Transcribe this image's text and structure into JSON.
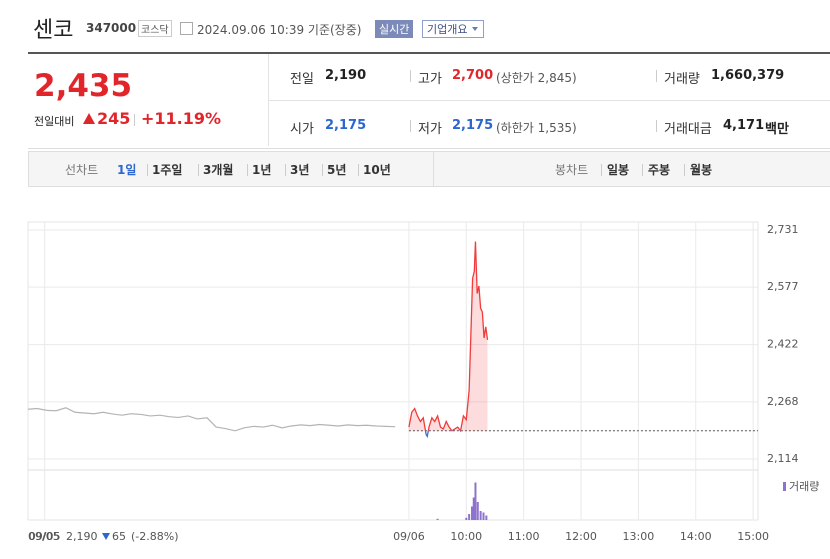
{
  "header": {
    "name": "센코",
    "code": "347000",
    "market": "코스닥",
    "datetime": "2024.09.06 10:39 기준(장중)",
    "realtime_button": "실시간",
    "company_button": "기업개요"
  },
  "quote": {
    "price": "2,435",
    "change_label": "전일대비",
    "change": "245",
    "rate": "+11.19%",
    "prev_close": {
      "label": "전일",
      "value": "2,190"
    },
    "open": {
      "label": "시가",
      "value": "2,175"
    },
    "high": {
      "label": "고가",
      "value": "2,700",
      "limit": "(상한가 2,845)"
    },
    "low": {
      "label": "저가",
      "value": "2,175",
      "limit": "(하한가 1,535)"
    },
    "volume": {
      "label": "거래량",
      "value": "1,660,379"
    },
    "amount": {
      "label": "거래대금",
      "value": "4,171",
      "unit": "백만"
    }
  },
  "tabs": {
    "line_label": "선차트",
    "line_periods": [
      "1일",
      "1주일",
      "3개월",
      "1년",
      "3년",
      "5년",
      "10년"
    ],
    "candle_label": "봉차트",
    "candle_periods": [
      "일봉",
      "주봉",
      "월봉"
    ]
  },
  "chart_data": {
    "type": "line",
    "xlim": [
      26.36,
      39.12
    ],
    "xticks": [
      {
        "value": 26.65,
        "label": "09/05"
      },
      {
        "value": 33,
        "label": "09/06"
      },
      {
        "value": 34,
        "label": "10:00"
      },
      {
        "value": 35,
        "label": "11:00"
      },
      {
        "value": 36,
        "label": "12:00"
      },
      {
        "value": 37,
        "label": "13:00"
      },
      {
        "value": 38,
        "label": "14:00"
      },
      {
        "value": 39,
        "label": "15:00"
      }
    ],
    "ylim": [
      2114,
      2731
    ],
    "yticks": [
      {
        "value": 2114,
        "label": "2,114"
      },
      {
        "value": 2268,
        "label": "2,268"
      },
      {
        "value": 2422,
        "label": "2,422"
      },
      {
        "value": 2577,
        "label": "2,577"
      },
      {
        "value": 2731,
        "label": "2,731"
      }
    ],
    "grid": true,
    "reference": 2190,
    "series": [
      {
        "color": "#b4b4b4",
        "x": [
          26.36,
          26.52,
          26.69,
          26.85,
          27.02,
          27.18,
          27.34,
          27.51,
          27.67,
          27.84,
          28.0,
          28.16,
          28.33,
          28.49,
          28.66,
          28.82,
          28.98,
          29.15,
          29.31,
          29.48,
          29.64,
          29.8,
          29.97,
          30.13,
          30.3,
          30.46,
          30.62,
          30.79,
          30.95,
          31.12,
          31.28,
          31.44,
          31.61,
          31.77,
          31.94,
          32.1,
          32.26,
          32.43,
          32.59,
          32.76
        ],
        "values": [
          2248,
          2250,
          2245,
          2244,
          2252,
          2240,
          2238,
          2236,
          2240,
          2235,
          2232,
          2236,
          2234,
          2230,
          2232,
          2228,
          2226,
          2230,
          2222,
          2225,
          2200,
          2196,
          2190,
          2198,
          2202,
          2200,
          2205,
          2198,
          2203,
          2206,
          2204,
          2207,
          2205,
          2203,
          2206,
          2204,
          2205,
          2203,
          2202,
          2201
        ]
      },
      {
        "color": "#f03c3c",
        "below_color": "#3a6fd0",
        "x": [
          33.0,
          33.05,
          33.1,
          33.15,
          33.2,
          33.25,
          33.3,
          33.32,
          33.35,
          33.4,
          33.45,
          33.5,
          33.55,
          33.6,
          33.65,
          33.7,
          33.75,
          33.8,
          33.85,
          33.9,
          33.95,
          34.0,
          34.05,
          34.08,
          34.11,
          34.14,
          34.16,
          34.19,
          34.22,
          34.25,
          34.28,
          34.31,
          34.34,
          34.37
        ],
        "values": [
          2200,
          2240,
          2250,
          2230,
          2215,
          2225,
          2180,
          2175,
          2200,
          2225,
          2215,
          2230,
          2200,
          2195,
          2215,
          2200,
          2190,
          2195,
          2200,
          2190,
          2230,
          2220,
          2300,
          2450,
          2600,
          2620,
          2700,
          2560,
          2580,
          2520,
          2510,
          2440,
          2470,
          2435
        ]
      }
    ],
    "volume": {
      "legend": "거래량",
      "color": "#8e72cf",
      "ylim": [
        0,
        300000
      ],
      "x": [
        33.5,
        34.0,
        34.05,
        34.1,
        34.13,
        34.16,
        34.2,
        34.25,
        34.3,
        34.35
      ],
      "values": [
        8000,
        15000,
        40000,
        90000,
        150000,
        250000,
        120000,
        60000,
        50000,
        30000
      ]
    },
    "summary": {
      "date": "09/05",
      "close": "2,190",
      "change": "65",
      "rate": "(-2.88%)"
    }
  }
}
